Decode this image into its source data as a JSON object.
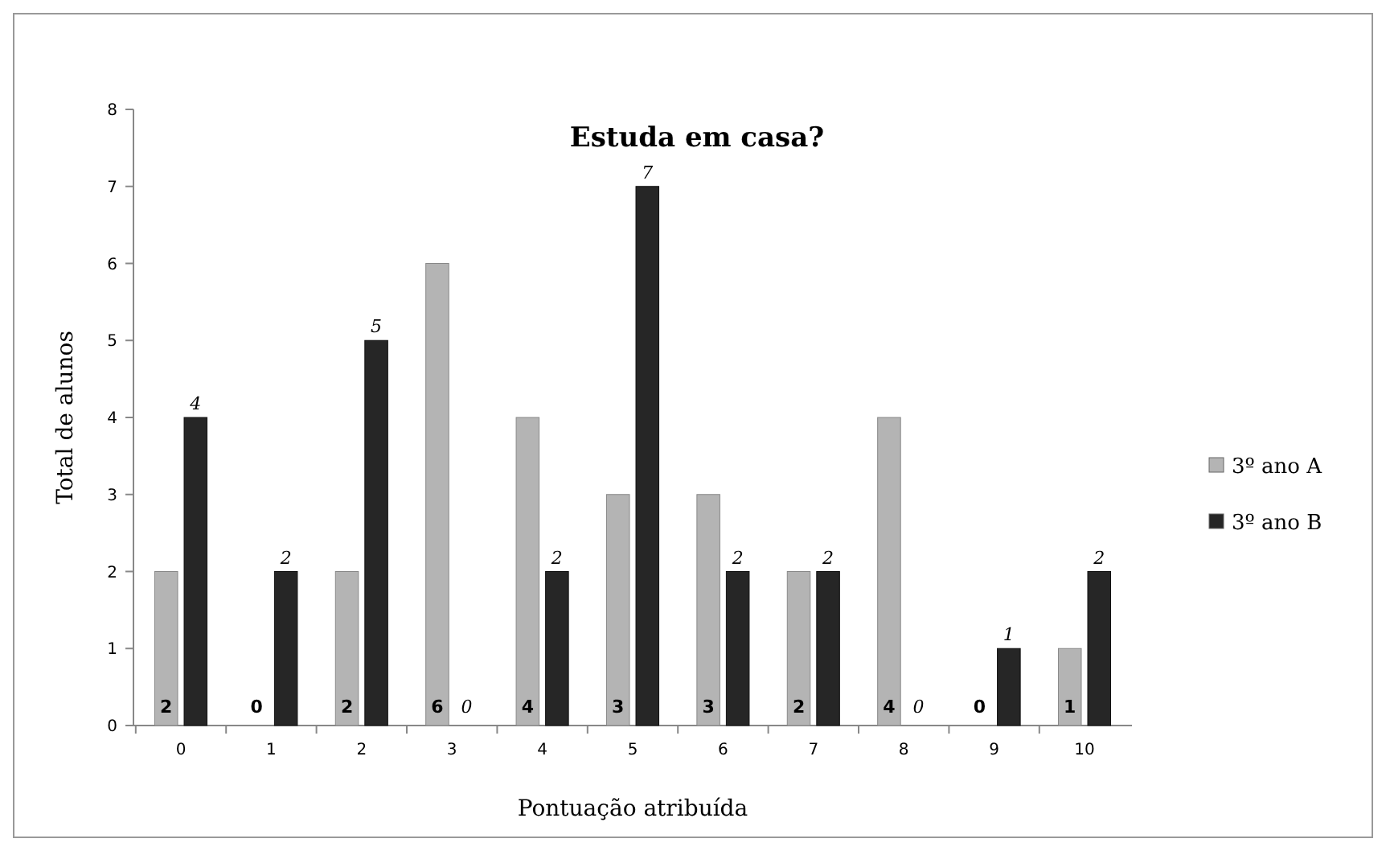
{
  "chart_data": {
    "type": "bar",
    "title": "Estuda em casa?",
    "xlabel": "Pontuação atribuída",
    "ylabel": "Total de alunos",
    "categories": [
      "0",
      "1",
      "2",
      "3",
      "4",
      "5",
      "6",
      "7",
      "8",
      "9",
      "10"
    ],
    "series": [
      {
        "name": "3º ano A",
        "color": "#b4b4b4",
        "values": [
          2,
          0,
          2,
          6,
          4,
          3,
          3,
          2,
          4,
          0,
          1
        ]
      },
      {
        "name": "3º ano B",
        "color": "#262626",
        "values": [
          4,
          2,
          5,
          0,
          2,
          7,
          2,
          2,
          0,
          1,
          2
        ]
      }
    ],
    "ylim": [
      0,
      8
    ],
    "yticks": [
      0,
      1,
      2,
      3,
      4,
      5,
      6,
      7,
      8
    ],
    "grid": false,
    "legend": "right",
    "data_labels": true
  }
}
